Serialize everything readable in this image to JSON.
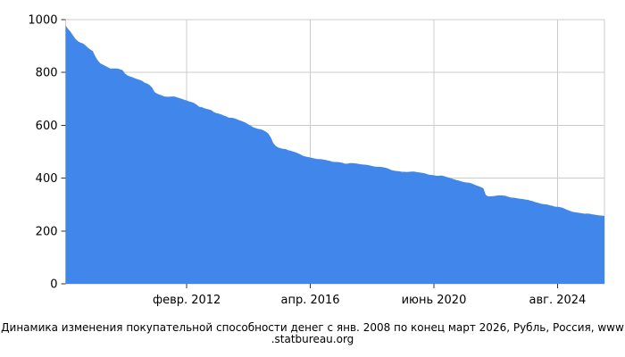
{
  "chart_data": {
    "type": "area",
    "caption": "Динамика изменения покупательной способности денег с янв. 2008 по конец март 2026, Рубль, Россия, www.statbureau.org",
    "caption_lines": [
      "Динамика изменения покупательной способности денег с янв. 2008 по конец март 2026, Рубль, Россия, www",
      ".statbureau.org"
    ],
    "x_start": "янв. 2008",
    "x_end": "март 2026",
    "frequency": "monthly",
    "x_tick_labels": [
      "февр. 2012",
      "апр. 2016",
      "июнь 2020",
      "авг. 2024"
    ],
    "x_tick_months": [
      49,
      99,
      149,
      199
    ],
    "y_ticks": [
      0,
      200,
      400,
      600,
      800,
      1000
    ],
    "ylim": [
      0,
      1000
    ],
    "grid": true,
    "legend": "none",
    "colors": {
      "area_fill": "#4187EB",
      "grid": "#CCCCCC",
      "axis_tick": "#333333",
      "text": "#000000",
      "background": "#FFFFFF"
    },
    "monthly_values": [
      977,
      965,
      954,
      940,
      927,
      918,
      913,
      910,
      903,
      894,
      887,
      881,
      861,
      846,
      835,
      830,
      825,
      820,
      815,
      815,
      815,
      815,
      812,
      809,
      796,
      789,
      785,
      782,
      778,
      775,
      772,
      768,
      761,
      758,
      752,
      743,
      726,
      720,
      716,
      713,
      709,
      708,
      708,
      709,
      709,
      706,
      703,
      700,
      697,
      694,
      690,
      688,
      684,
      678,
      670,
      669,
      665,
      662,
      660,
      657,
      650,
      646,
      644,
      641,
      637,
      634,
      629,
      629,
      627,
      624,
      620,
      617,
      613,
      609,
      603,
      598,
      592,
      589,
      586,
      585,
      581,
      576,
      569,
      554,
      533,
      522,
      516,
      513,
      511,
      510,
      506,
      504,
      501,
      498,
      494,
      490,
      485,
      482,
      480,
      478,
      476,
      474,
      472,
      472,
      471,
      469,
      467,
      465,
      462,
      461,
      461,
      460,
      458,
      455,
      455,
      457,
      457,
      456,
      455,
      453,
      452,
      451,
      450,
      448,
      446,
      444,
      443,
      443,
      442,
      440,
      438,
      434,
      430,
      428,
      427,
      426,
      424,
      424,
      423,
      424,
      425,
      425,
      423,
      422,
      420,
      419,
      416,
      413,
      412,
      411,
      409,
      409,
      410,
      408,
      405,
      402,
      399,
      396,
      393,
      391,
      388,
      385,
      384,
      383,
      381,
      377,
      373,
      370,
      366,
      362,
      336,
      331,
      331,
      332,
      333,
      335,
      335,
      334,
      333,
      330,
      327,
      326,
      325,
      323,
      322,
      321,
      319,
      318,
      315,
      313,
      309,
      307,
      304,
      302,
      301,
      300,
      297,
      295,
      292,
      292,
      290,
      288,
      284,
      280,
      276,
      273,
      271,
      270,
      268,
      267,
      265,
      266,
      265,
      263,
      262,
      260,
      259,
      258,
      257
    ]
  }
}
